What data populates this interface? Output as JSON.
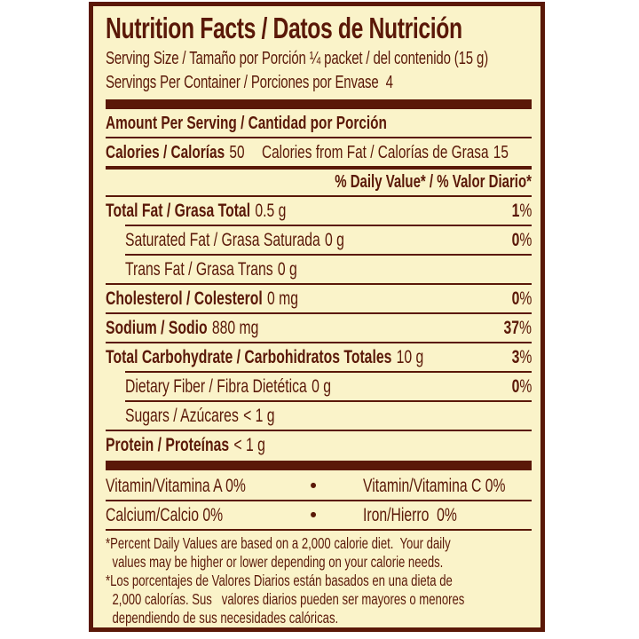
{
  "percent_sign": "%",
  "label": {
    "title": "Nutrition Facts / Datos de Nutrición",
    "serving_size": "Serving Size / Tamaño por Porción ¼ packet / del contenido (15 g)",
    "servings_per_container": "Servings Per Container / Porciones por Envase  4",
    "amount_per_serving": "Amount Per Serving / Cantidad por Porción",
    "calories_label": "Calories / Calorías",
    "calories_value": "50",
    "calories_from_fat_label": "Calories from Fat / Calorías de Grasa",
    "calories_from_fat_value": "15",
    "daily_value_header": "% Daily Value* / % Valor Diario*",
    "nutrients": [
      {
        "label": "Total Fat / Grasa Total",
        "amount": "0.5 g",
        "dv": "1"
      },
      {
        "label": "Saturated Fat / Grasa Saturada",
        "amount": "0 g",
        "dv": "0"
      },
      {
        "label": "Trans Fat / Grasa Trans",
        "amount": "0 g",
        "dv": ""
      },
      {
        "label": "Cholesterol / Colesterol",
        "amount": "0 mg",
        "dv": "0"
      },
      {
        "label": "Sodium / Sodio",
        "amount": "880 mg",
        "dv": "37"
      },
      {
        "label": "Total Carbohydrate / Carbohidratos Totales",
        "amount": "10 g",
        "dv": "3"
      },
      {
        "label": "Dietary Fiber / Fibra Dietética",
        "amount": "0 g",
        "dv": "0"
      },
      {
        "label": "Sugars / Azúcares",
        "amount": "< 1 g",
        "dv": ""
      },
      {
        "label": "Protein / Proteínas",
        "amount": "< 1 g",
        "dv": ""
      }
    ],
    "bullet": "•",
    "micronutrients": [
      {
        "left": "Vitamin/Vitamina A 0%",
        "right": "Vitamin/Vitamina C 0%"
      },
      {
        "left": "Calcium/Calcio 0%",
        "right": "Iron/Hierro  0%"
      }
    ],
    "footnotes": [
      {
        "lines": [
          "*Percent Daily Values are based on a 2,000 calorie diet.  Your daily",
          "values may be higher or lower depending on your calorie needs."
        ]
      },
      {
        "lines": [
          "*Los porcentajes de Valores Diarios están basados en una dieta de",
          "2,000 calorías. Sus   valores diarios pueden ser mayores o menores",
          "dependiendo de sus necesidades calóricas."
        ]
      }
    ],
    "colors": {
      "text": "#5a1808",
      "background": "#faf3c9",
      "page_background": "#ffffff"
    }
  }
}
